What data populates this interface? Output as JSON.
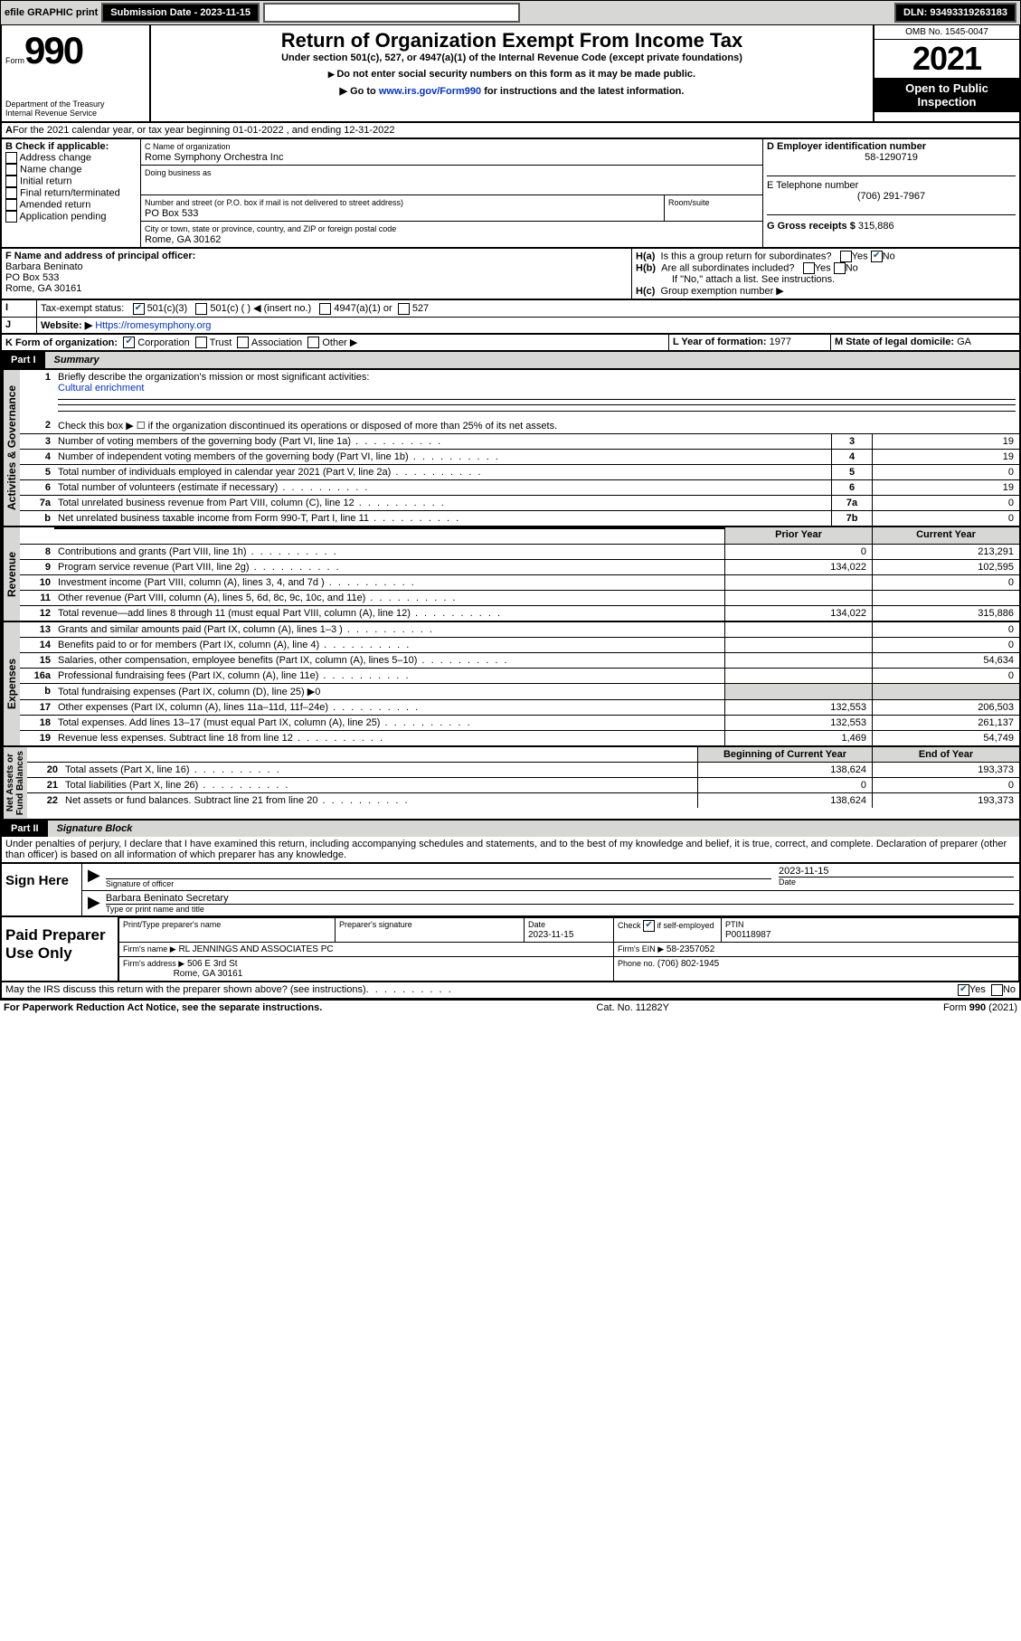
{
  "toolbar": {
    "efile": "efile GRAPHIC print",
    "submission": "Submission Date - 2023-11-15",
    "dln": "DLN: 93493319263183"
  },
  "header": {
    "form_word": "Form",
    "form_no": "990",
    "dept": "Department of the Treasury",
    "irs": "Internal Revenue Service",
    "title": "Return of Organization Exempt From Income Tax",
    "sub1": "Under section 501(c), 527, or 4947(a)(1) of the Internal Revenue Code (except private foundations)",
    "sub2": "Do not enter social security numbers on this form as it may be made public.",
    "sub3_a": "Go to ",
    "sub3_link": "www.irs.gov/Form990",
    "sub3_b": " for instructions and the latest information.",
    "omb": "OMB No. 1545-0047",
    "year": "2021",
    "open": "Open to Public Inspection"
  },
  "A": {
    "text": "For the 2021 calendar year, or tax year beginning 01-01-2022   , and ending 12-31-2022"
  },
  "B": {
    "label": "B Check if applicable:",
    "opts": [
      "Address change",
      "Name change",
      "Initial return",
      "Final return/terminated",
      "Amended return",
      "Application pending"
    ]
  },
  "C": {
    "name_lbl": "C Name of organization",
    "name": "Rome Symphony Orchestra Inc",
    "dba_lbl": "Doing business as",
    "dba": "",
    "addr_lbl": "Number and street (or P.O. box if mail is not delivered to street address)",
    "room_lbl": "Room/suite",
    "addr": "PO Box 533",
    "city_lbl": "City or town, state or province, country, and ZIP or foreign postal code",
    "city": "Rome, GA  30162"
  },
  "D": {
    "lbl": "D Employer identification number",
    "val": "58-1290719"
  },
  "E": {
    "lbl": "E Telephone number",
    "val": "(706) 291-7967"
  },
  "G": {
    "lbl": "G Gross receipts $",
    "val": "315,886"
  },
  "F": {
    "lbl": "F  Name and address of principal officer:",
    "name": "Barbara Beninato",
    "addr": "PO Box 533",
    "city": "Rome, GA  30161"
  },
  "H": {
    "a": "Is this a group return for subordinates?",
    "b": "Are all subordinates included?",
    "b_note": "If \"No,\" attach a list. See instructions.",
    "c": "Group exemption number ▶"
  },
  "I": {
    "lbl": "Tax-exempt status:",
    "o1": "501(c)(3)",
    "o2": "501(c) (  ) ◀ (insert no.)",
    "o3": "4947(a)(1) or",
    "o4": "527"
  },
  "J": {
    "lbl": "Website: ▶",
    "val": "Https://romesymphony.org"
  },
  "K": {
    "lbl": "K Form of organization:",
    "opts": [
      "Corporation",
      "Trust",
      "Association",
      "Other ▶"
    ]
  },
  "L": {
    "lbl": "L Year of formation:",
    "val": "1977"
  },
  "M": {
    "lbl": "M State of legal domicile:",
    "val": "GA"
  },
  "part1": {
    "tab": "Part I",
    "title": "Summary"
  },
  "s1": {
    "n": "1",
    "t": "Briefly describe the organization's mission or most significant activities:",
    "v": "Cultural enrichment"
  },
  "s2": {
    "n": "2",
    "t": "Check this box ▶ ☐  if the organization discontinued its operations or disposed of more than 25% of its net assets."
  },
  "lines_ag": [
    {
      "n": "3",
      "t": "Number of voting members of the governing body (Part VI, line 1a)",
      "nn": "3",
      "v": "19"
    },
    {
      "n": "4",
      "t": "Number of independent voting members of the governing body (Part VI, line 1b)",
      "nn": "4",
      "v": "19"
    },
    {
      "n": "5",
      "t": "Total number of individuals employed in calendar year 2021 (Part V, line 2a)",
      "nn": "5",
      "v": "0"
    },
    {
      "n": "6",
      "t": "Total number of volunteers (estimate if necessary)",
      "nn": "6",
      "v": "19"
    },
    {
      "n": "7a",
      "t": "Total unrelated business revenue from Part VIII, column (C), line 12",
      "nn": "7a",
      "v": "0"
    },
    {
      "n": "b",
      "t": "Net unrelated business taxable income from Form 990-T, Part I, line 11",
      "nn": "7b",
      "v": "0"
    }
  ],
  "col_hdr": {
    "prior": "Prior Year",
    "curr": "Current Year"
  },
  "rev": [
    {
      "n": "8",
      "t": "Contributions and grants (Part VIII, line 1h)",
      "p": "0",
      "c": "213,291"
    },
    {
      "n": "9",
      "t": "Program service revenue (Part VIII, line 2g)",
      "p": "134,022",
      "c": "102,595"
    },
    {
      "n": "10",
      "t": "Investment income (Part VIII, column (A), lines 3, 4, and 7d )",
      "p": "",
      "c": "0"
    },
    {
      "n": "11",
      "t": "Other revenue (Part VIII, column (A), lines 5, 6d, 8c, 9c, 10c, and 11e)",
      "p": "",
      "c": ""
    },
    {
      "n": "12",
      "t": "Total revenue—add lines 8 through 11 (must equal Part VIII, column (A), line 12)",
      "p": "134,022",
      "c": "315,886"
    }
  ],
  "exp": [
    {
      "n": "13",
      "t": "Grants and similar amounts paid (Part IX, column (A), lines 1–3 )",
      "p": "",
      "c": "0"
    },
    {
      "n": "14",
      "t": "Benefits paid to or for members (Part IX, column (A), line 4)",
      "p": "",
      "c": "0"
    },
    {
      "n": "15",
      "t": "Salaries, other compensation, employee benefits (Part IX, column (A), lines 5–10)",
      "p": "",
      "c": "54,634"
    },
    {
      "n": "16a",
      "t": "Professional fundraising fees (Part IX, column (A), line 11e)",
      "p": "",
      "c": "0"
    },
    {
      "n": "b",
      "t": "Total fundraising expenses (Part IX, column (D), line 25) ▶0",
      "p": "—",
      "c": "—"
    },
    {
      "n": "17",
      "t": "Other expenses (Part IX, column (A), lines 11a–11d, 11f–24e)",
      "p": "132,553",
      "c": "206,503"
    },
    {
      "n": "18",
      "t": "Total expenses. Add lines 13–17 (must equal Part IX, column (A), line 25)",
      "p": "132,553",
      "c": "261,137"
    },
    {
      "n": "19",
      "t": "Revenue less expenses. Subtract line 18 from line 12",
      "p": "1,469",
      "c": "54,749"
    }
  ],
  "na_hdr": {
    "b": "Beginning of Current Year",
    "e": "End of Year"
  },
  "na": [
    {
      "n": "20",
      "t": "Total assets (Part X, line 16)",
      "p": "138,624",
      "c": "193,373"
    },
    {
      "n": "21",
      "t": "Total liabilities (Part X, line 26)",
      "p": "0",
      "c": "0"
    },
    {
      "n": "22",
      "t": "Net assets or fund balances. Subtract line 21 from line 20",
      "p": "138,624",
      "c": "193,373"
    }
  ],
  "part2": {
    "tab": "Part II",
    "title": "Signature Block"
  },
  "perjury": "Under penalties of perjury, I declare that I have examined this return, including accompanying schedules and statements, and to the best of my knowledge and belief, it is true, correct, and complete. Declaration of preparer (other than officer) is based on all information of which preparer has any knowledge.",
  "sign": {
    "here": "Sign Here",
    "sig_lbl": "Signature of officer",
    "date_lbl": "Date",
    "date": "2023-11-15",
    "name": "Barbara Beninato  Secretary",
    "name_lbl": "Type or print name and title"
  },
  "paid": {
    "lbl": "Paid Preparer Use Only",
    "h1": "Print/Type preparer's name",
    "h2": "Preparer's signature",
    "h3": "Date",
    "h3v": "2023-11-15",
    "h4a": "Check",
    "h4b": "if self-employed",
    "h5": "PTIN",
    "h5v": "P00118987",
    "firm_lbl": "Firm's name   ▶",
    "firm": "RL JENNINGS AND ASSOCIATES PC",
    "ein_lbl": "Firm's EIN ▶",
    "ein": "58-2357052",
    "addr_lbl": "Firm's address ▶",
    "addr1": "506 E 3rd St",
    "addr2": "Rome, GA  30161",
    "phone_lbl": "Phone no.",
    "phone": "(706) 802-1945"
  },
  "discuss": "May the IRS discuss this return with the preparer shown above? (see instructions)",
  "footer": {
    "pra": "For Paperwork Reduction Act Notice, see the separate instructions.",
    "cat": "Cat. No. 11282Y",
    "form": "Form 990 (2021)"
  }
}
